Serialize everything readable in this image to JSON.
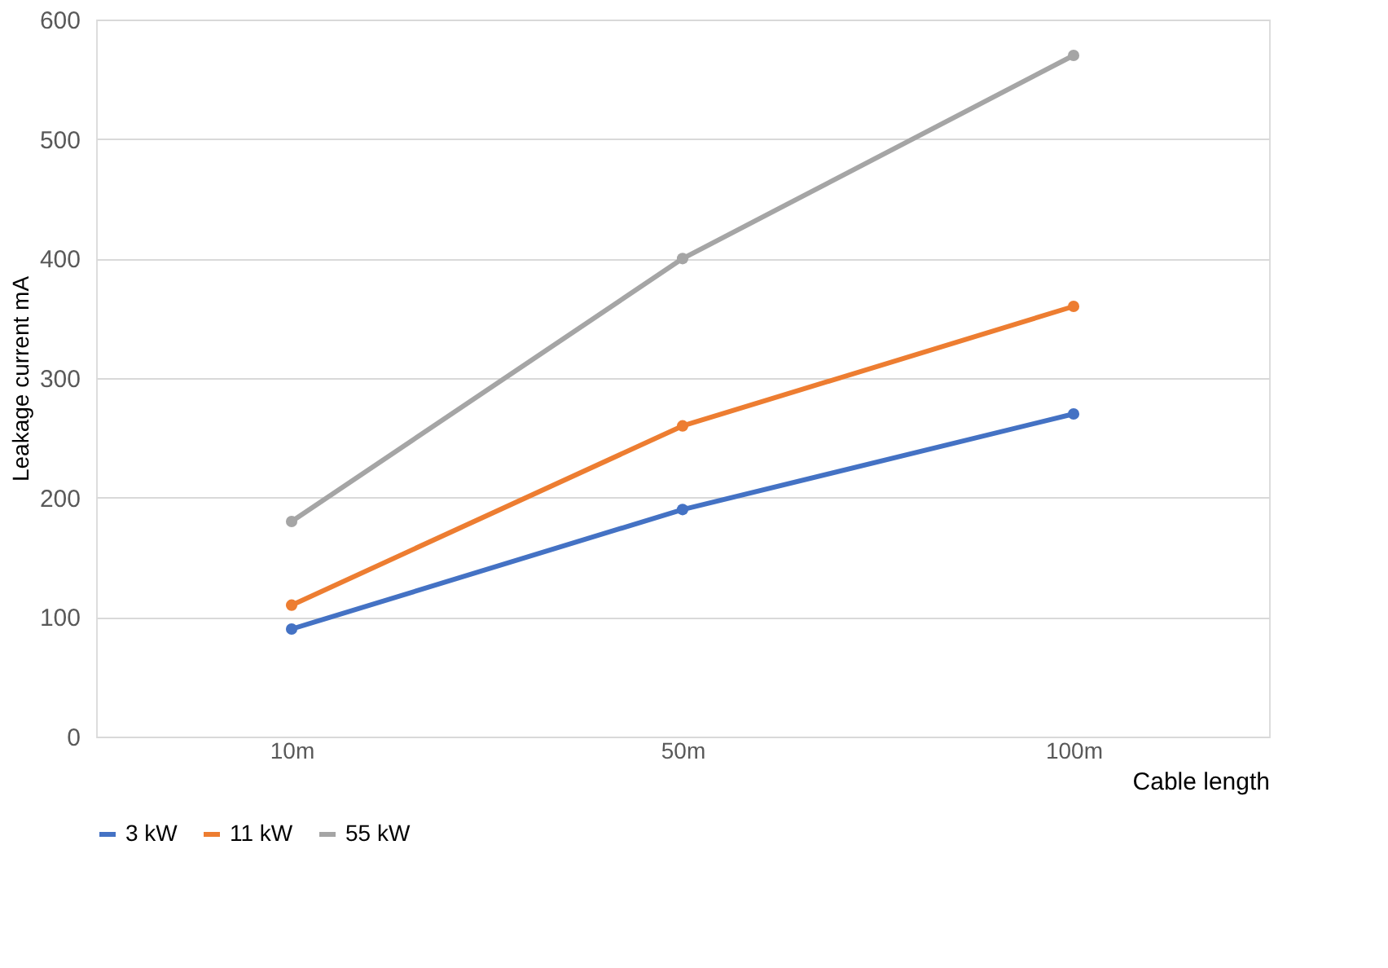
{
  "chart_data": {
    "type": "line",
    "categories": [
      "10m",
      "50m",
      "100m"
    ],
    "xlabel": "Cable length",
    "ylabel": "Leakage  current mA",
    "ylim": [
      0,
      600
    ],
    "yticks": [
      0,
      100,
      200,
      300,
      400,
      500,
      600
    ],
    "grid": "y",
    "legend": "bottom",
    "marker": "circle",
    "line_style": "solid",
    "series": [
      {
        "name": "3 kW",
        "color": "#4472c4",
        "values": [
          90,
          190,
          270
        ]
      },
      {
        "name": "11 kW",
        "color": "#ed7d31",
        "values": [
          110,
          260,
          360
        ]
      },
      {
        "name": "55 kW",
        "color": "#a5a5a5",
        "values": [
          180,
          400,
          570
        ]
      }
    ]
  }
}
